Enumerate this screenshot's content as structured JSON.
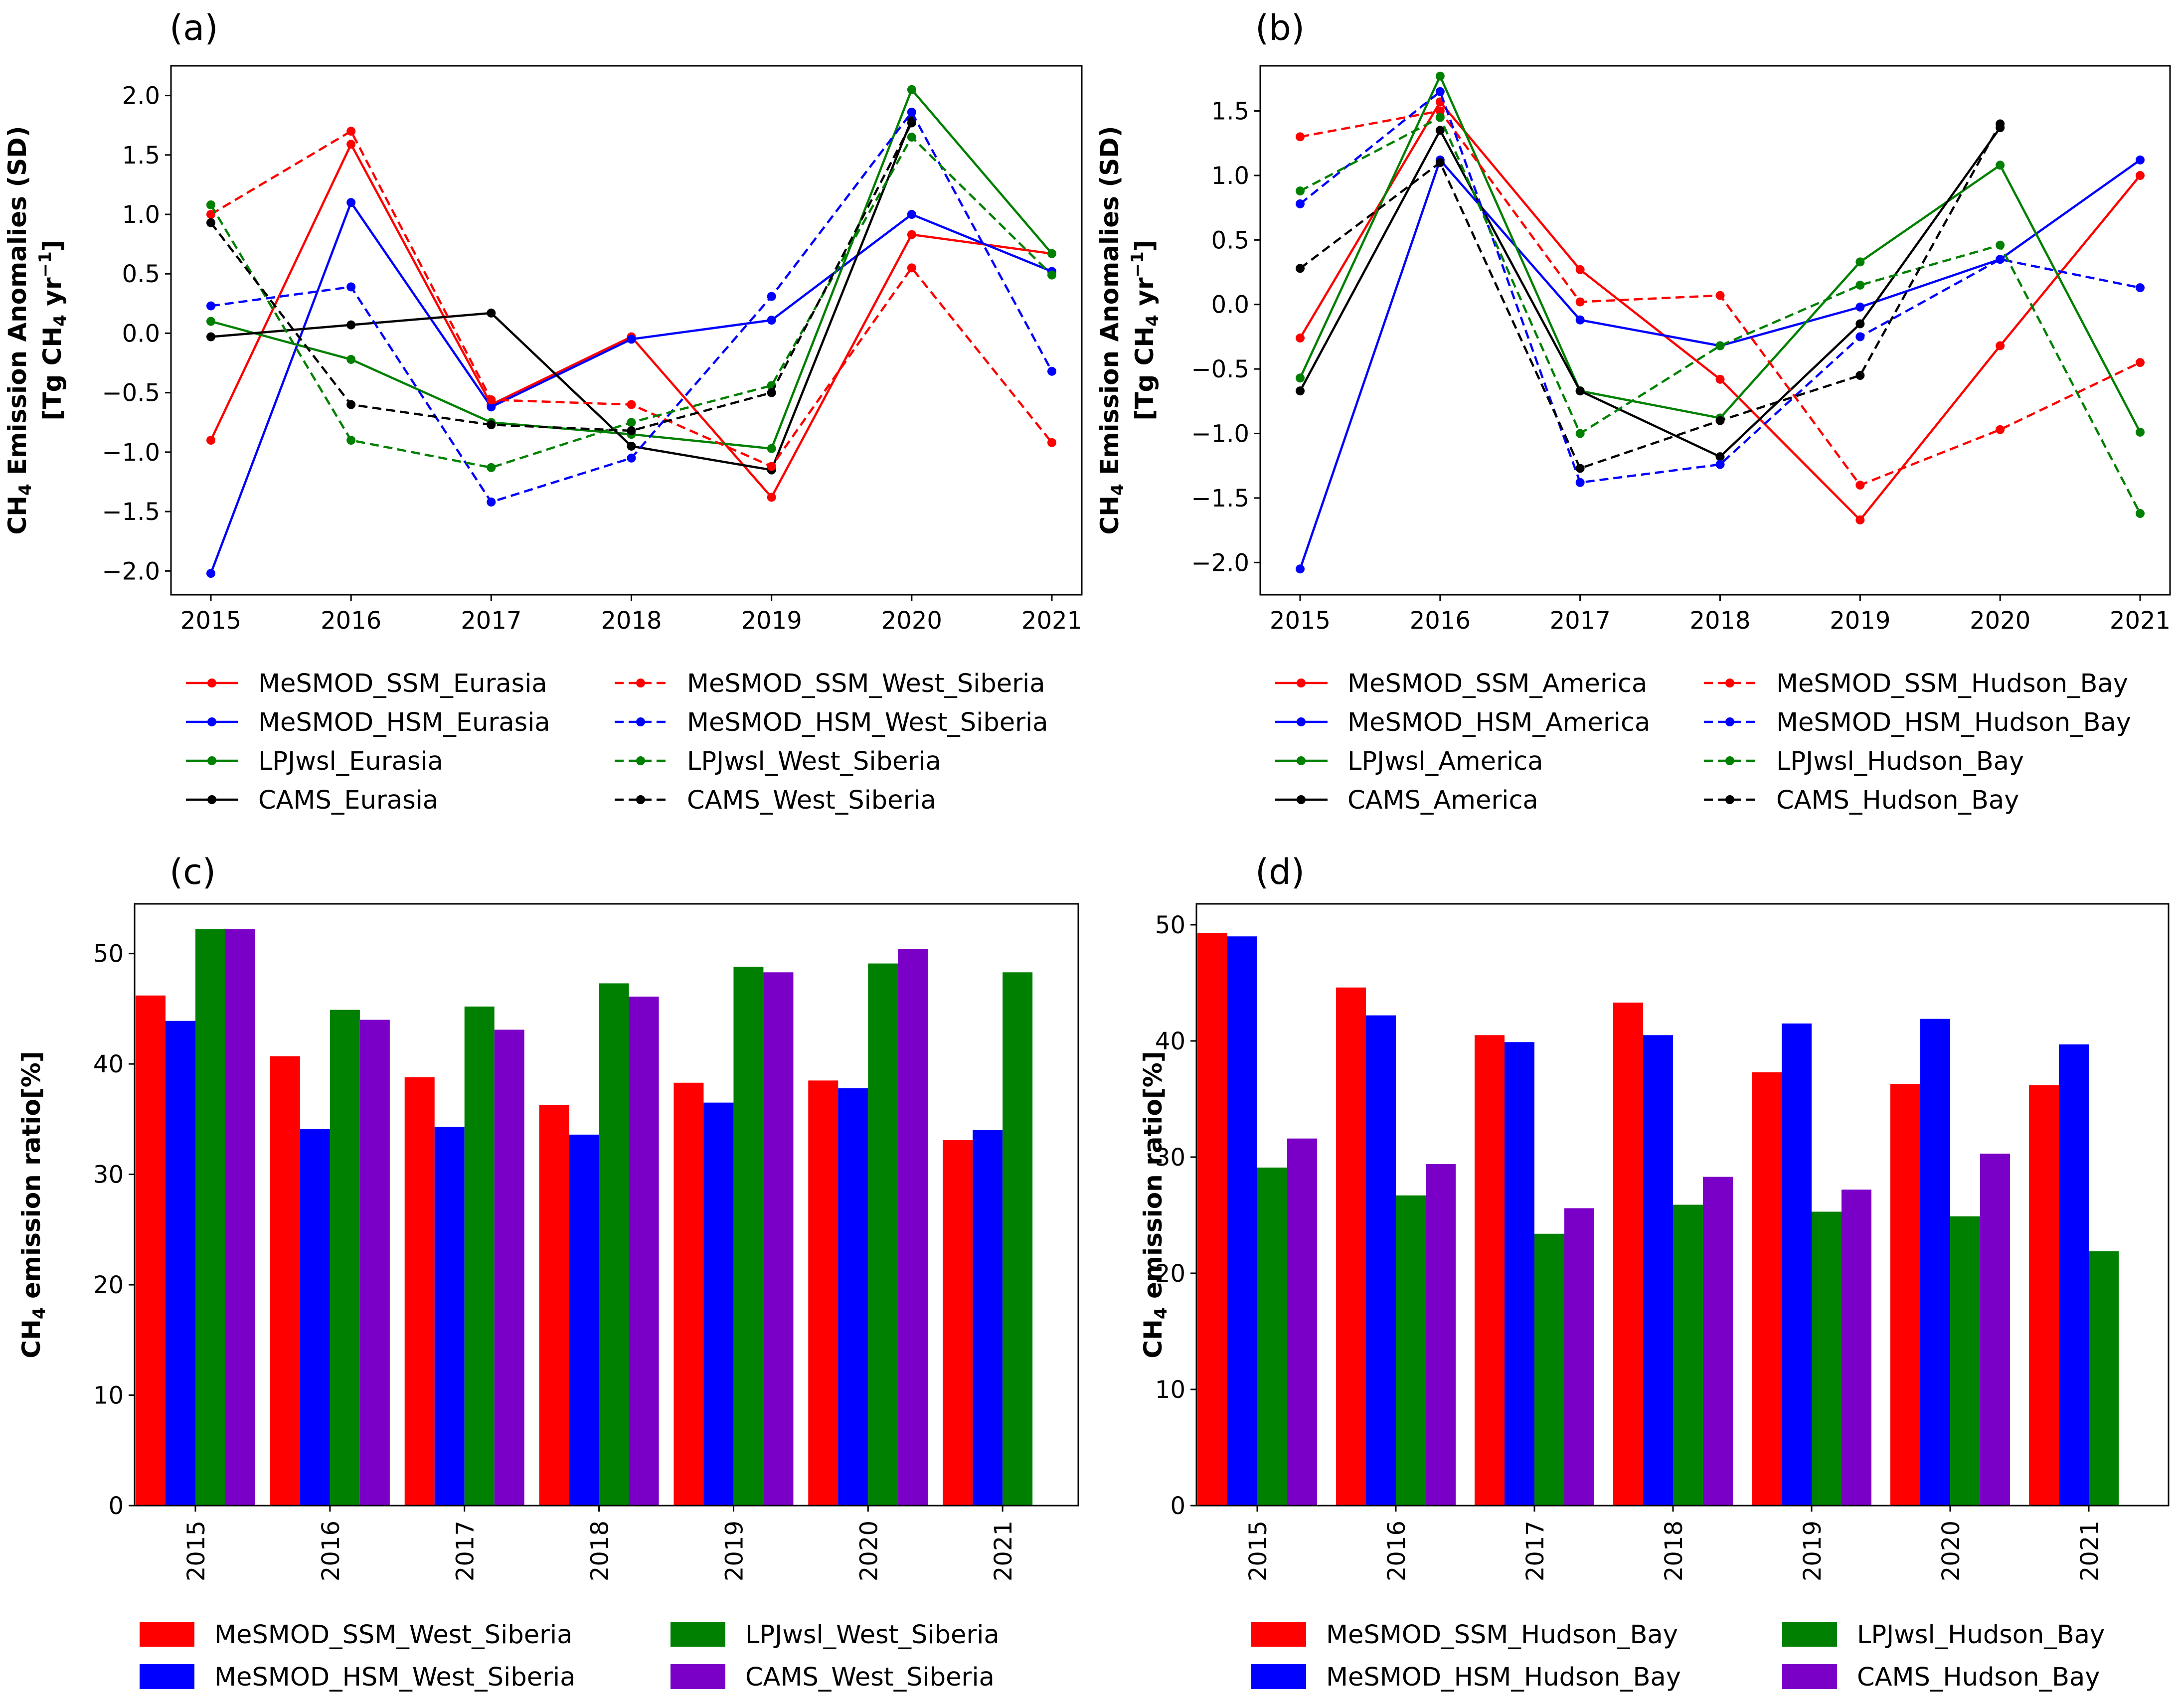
{
  "chart_data": [
    {
      "panel_label": "(a)",
      "type": "line",
      "x": [
        "2015",
        "2016",
        "2017",
        "2018",
        "2019",
        "2020",
        "2021"
      ],
      "ylabel": {
        "main": "CH",
        "sub": "4",
        "rest": " Emission Anomalies (SD)",
        "line2_pre": "[Tg CH",
        "line2_sub": "4",
        "line2_post": " yr",
        "line2_sup": "−1",
        "line2_end": "]"
      },
      "ylim": [
        -2.2,
        2.25
      ],
      "yticks": [
        -2.0,
        -1.5,
        -1.0,
        -0.5,
        0.0,
        0.5,
        1.0,
        1.5,
        2.0
      ],
      "ytick_labels": [
        "−2.0",
        "−1.5",
        "−1.0",
        "−0.5",
        "0.0",
        "0.5",
        "1.0",
        "1.5",
        "2.0"
      ],
      "series": [
        {
          "name": "MeSMOD_SSM_Eurasia",
          "color": "#ff0000",
          "dash": "solid",
          "values": [
            -0.9,
            1.59,
            -0.6,
            -0.03,
            -1.38,
            0.83,
            0.67
          ]
        },
        {
          "name": "MeSMOD_HSM_Eurasia",
          "color": "#0000ff",
          "dash": "solid",
          "values": [
            -2.02,
            1.1,
            -0.62,
            -0.05,
            0.11,
            1.0,
            0.52
          ]
        },
        {
          "name": "LPJwsl_Eurasia",
          "color": "#008000",
          "dash": "solid",
          "values": [
            0.1,
            -0.22,
            -0.75,
            -0.85,
            -0.97,
            2.05,
            0.67
          ]
        },
        {
          "name": "CAMS_Eurasia",
          "color": "#000000",
          "dash": "solid",
          "values": [
            -0.03,
            0.07,
            0.17,
            -0.95,
            -1.15,
            1.8,
            null
          ]
        },
        {
          "name": "MeSMOD_SSM_West_Siberia",
          "color": "#ff0000",
          "dash": "dashed",
          "values": [
            1.0,
            1.7,
            -0.56,
            -0.6,
            -1.12,
            0.55,
            -0.92
          ]
        },
        {
          "name": "MeSMOD_HSM_West_Siberia",
          "color": "#0000ff",
          "dash": "dashed",
          "values": [
            0.23,
            0.39,
            -1.42,
            -1.05,
            0.31,
            1.86,
            -0.32
          ]
        },
        {
          "name": "LPJwsl_West_Siberia",
          "color": "#008000",
          "dash": "dashed",
          "values": [
            1.08,
            -0.9,
            -1.13,
            -0.75,
            -0.44,
            1.65,
            0.49
          ]
        },
        {
          "name": "CAMS_West_Siberia",
          "color": "#000000",
          "dash": "dashed",
          "values": [
            0.93,
            -0.6,
            -0.77,
            -0.82,
            -0.5,
            1.77,
            null
          ]
        }
      ]
    },
    {
      "panel_label": "(b)",
      "type": "line",
      "x": [
        "2015",
        "2016",
        "2017",
        "2018",
        "2019",
        "2020",
        "2021"
      ],
      "ylabel": {
        "main": "CH",
        "sub": "4",
        "rest": " Emission Anomalies (SD)",
        "line2_pre": "[Tg CH",
        "line2_sub": "4",
        "line2_post": " yr",
        "line2_sup": "−1",
        "line2_end": "]"
      },
      "ylim": [
        -2.25,
        1.85
      ],
      "yticks": [
        -2.0,
        -1.5,
        -1.0,
        -0.5,
        0.0,
        0.5,
        1.0,
        1.5
      ],
      "ytick_labels": [
        "−2.0",
        "−1.5",
        "−1.0",
        "−0.5",
        "0.0",
        "0.5",
        "1.0",
        "1.5"
      ],
      "series": [
        {
          "name": "MeSMOD_SSM_America",
          "color": "#ff0000",
          "dash": "solid",
          "values": [
            -0.26,
            1.57,
            0.27,
            -0.58,
            -1.67,
            -0.32,
            1.0
          ]
        },
        {
          "name": "MeSMOD_HSM_America",
          "color": "#0000ff",
          "dash": "solid",
          "values": [
            -2.05,
            1.12,
            -0.12,
            -0.32,
            -0.02,
            0.35,
            1.12
          ]
        },
        {
          "name": "LPJwsl_America",
          "color": "#008000",
          "dash": "solid",
          "values": [
            -0.57,
            1.77,
            -0.67,
            -0.88,
            0.33,
            1.08,
            -0.99
          ]
        },
        {
          "name": "CAMS_America",
          "color": "#000000",
          "dash": "solid",
          "values": [
            -0.67,
            1.35,
            -0.67,
            -1.18,
            -0.15,
            1.37,
            null
          ]
        },
        {
          "name": "MeSMOD_SSM_Hudson_Bay",
          "color": "#ff0000",
          "dash": "dashed",
          "values": [
            1.3,
            1.5,
            0.02,
            0.07,
            -1.4,
            -0.97,
            -0.45
          ]
        },
        {
          "name": "MeSMOD_HSM_Hudson_Bay",
          "color": "#0000ff",
          "dash": "dashed",
          "values": [
            0.78,
            1.65,
            -1.38,
            -1.24,
            -0.25,
            0.35,
            0.13
          ]
        },
        {
          "name": "LPJwsl_Hudson_Bay",
          "color": "#008000",
          "dash": "dashed",
          "values": [
            0.88,
            1.45,
            -1.0,
            -0.32,
            0.15,
            0.46,
            -1.62
          ]
        },
        {
          "name": "CAMS_Hudson_Bay",
          "color": "#000000",
          "dash": "dashed",
          "values": [
            0.28,
            1.1,
            -1.27,
            -0.9,
            -0.55,
            1.4,
            null
          ]
        }
      ]
    },
    {
      "panel_label": "(c)",
      "type": "bar",
      "categories": [
        "2015",
        "2016",
        "2017",
        "2018",
        "2019",
        "2020",
        "2021"
      ],
      "ylabel": {
        "main": "CH",
        "sub": "4",
        "rest": " emission ratio[%]"
      },
      "ylim": [
        0,
        54.5
      ],
      "yticks": [
        0,
        10,
        20,
        30,
        40,
        50
      ],
      "series": [
        {
          "name": "MeSMOD_SSM_West_Siberia",
          "color": "#ff0000",
          "values": [
            46.2,
            40.7,
            38.8,
            36.3,
            38.3,
            38.5,
            33.1
          ]
        },
        {
          "name": "MeSMOD_HSM_West_Siberia",
          "color": "#0000ff",
          "values": [
            43.9,
            34.1,
            34.3,
            33.6,
            36.5,
            37.8,
            34.0
          ]
        },
        {
          "name": "LPJwsl_West_Siberia",
          "color": "#008000",
          "values": [
            52.2,
            44.9,
            45.2,
            47.3,
            48.8,
            49.1,
            48.3
          ]
        },
        {
          "name": "CAMS_West_Siberia",
          "color": "#7b00c7",
          "values": [
            52.2,
            44.0,
            43.1,
            46.1,
            48.3,
            50.4,
            null
          ]
        }
      ]
    },
    {
      "panel_label": "(d)",
      "type": "bar",
      "categories": [
        "2015",
        "2016",
        "2017",
        "2018",
        "2019",
        "2020",
        "2021"
      ],
      "ylabel": {
        "main": "CH",
        "sub": "4",
        "rest": " emission ratio[%]"
      },
      "ylim": [
        0,
        51.8
      ],
      "yticks": [
        0,
        10,
        20,
        30,
        40,
        50
      ],
      "series": [
        {
          "name": "MeSMOD_SSM_Hudson_Bay",
          "color": "#ff0000",
          "values": [
            49.3,
            44.6,
            40.5,
            43.3,
            37.3,
            36.3,
            36.2
          ]
        },
        {
          "name": "MeSMOD_HSM_Hudson_Bay",
          "color": "#0000ff",
          "values": [
            49.0,
            42.2,
            39.9,
            40.5,
            41.5,
            41.9,
            39.7
          ]
        },
        {
          "name": "LPJwsl_Hudson_Bay",
          "color": "#008000",
          "values": [
            29.1,
            26.7,
            23.4,
            25.9,
            25.3,
            24.9,
            21.9
          ]
        },
        {
          "name": "CAMS_Hudson_Bay",
          "color": "#7b00c7",
          "values": [
            31.6,
            29.4,
            25.6,
            28.3,
            27.2,
            30.3,
            null
          ]
        }
      ]
    }
  ]
}
